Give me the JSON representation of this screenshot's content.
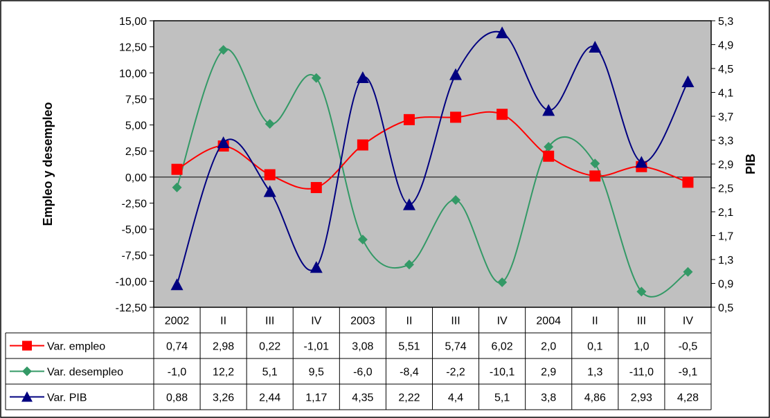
{
  "chart_data": {
    "type": "line",
    "title": "",
    "categories": [
      "2002",
      "II",
      "III",
      "IV",
      "2003",
      "II",
      "III",
      "IV",
      "2004",
      "II",
      "III",
      "IV"
    ],
    "y_left": {
      "label": "Empleo y desempleo",
      "min": -12.5,
      "max": 15.0,
      "step": 2.5,
      "tick_labels": [
        "15,00",
        "12,50",
        "10,00",
        "7,50",
        "5,00",
        "2,50",
        "0,00",
        "-2,50",
        "-5,00",
        "-7,50",
        "-10,00",
        "-12,50"
      ]
    },
    "y_right": {
      "label": "PIB",
      "min": 0.5,
      "max": 5.3,
      "step": 0.4,
      "tick_labels": [
        "5,3",
        "4,9",
        "4,5",
        "4,1",
        "3,7",
        "3,3",
        "2,9",
        "2,5",
        "2,1",
        "1,7",
        "1,3",
        "0,9",
        "0,5"
      ]
    },
    "plot_background": "#c0c0c0",
    "smooth_lines": true,
    "series": [
      {
        "name": "Var. empleo",
        "axis": "left",
        "color": "#ff0000",
        "marker": "square",
        "values": [
          0.74,
          2.98,
          0.22,
          -1.01,
          3.08,
          5.51,
          5.74,
          6.02,
          2.0,
          0.1,
          1.0,
          -0.5
        ],
        "table_values": [
          "0,74",
          "2,98",
          "0,22",
          "-1,01",
          "3,08",
          "5,51",
          "5,74",
          "6,02",
          "2,0",
          "0,1",
          "1,0",
          "-0,5"
        ]
      },
      {
        "name": "Var. desempleo",
        "axis": "left",
        "color": "#339966",
        "marker": "diamond",
        "values": [
          -1.0,
          12.2,
          5.1,
          9.5,
          -6.0,
          -8.4,
          -2.2,
          -10.1,
          2.9,
          1.3,
          -11.0,
          -9.1
        ],
        "table_values": [
          "-1,0",
          "12,2",
          "5,1",
          "9,5",
          "-6,0",
          "-8,4",
          "-2,2",
          "-10,1",
          "2,9",
          "1,3",
          "-11,0",
          "-9,1"
        ]
      },
      {
        "name": "Var. PIB",
        "axis": "right",
        "color": "#000080",
        "marker": "triangle",
        "values": [
          0.88,
          3.26,
          2.44,
          1.17,
          4.35,
          2.22,
          4.4,
          5.1,
          3.8,
          4.86,
          2.93,
          4.28
        ],
        "table_values": [
          "0,88",
          "3,26",
          "2,44",
          "1,17",
          "4,35",
          "2,22",
          "4,4",
          "5,1",
          "3,8",
          "4,86",
          "2,93",
          "4,28"
        ]
      }
    ]
  }
}
